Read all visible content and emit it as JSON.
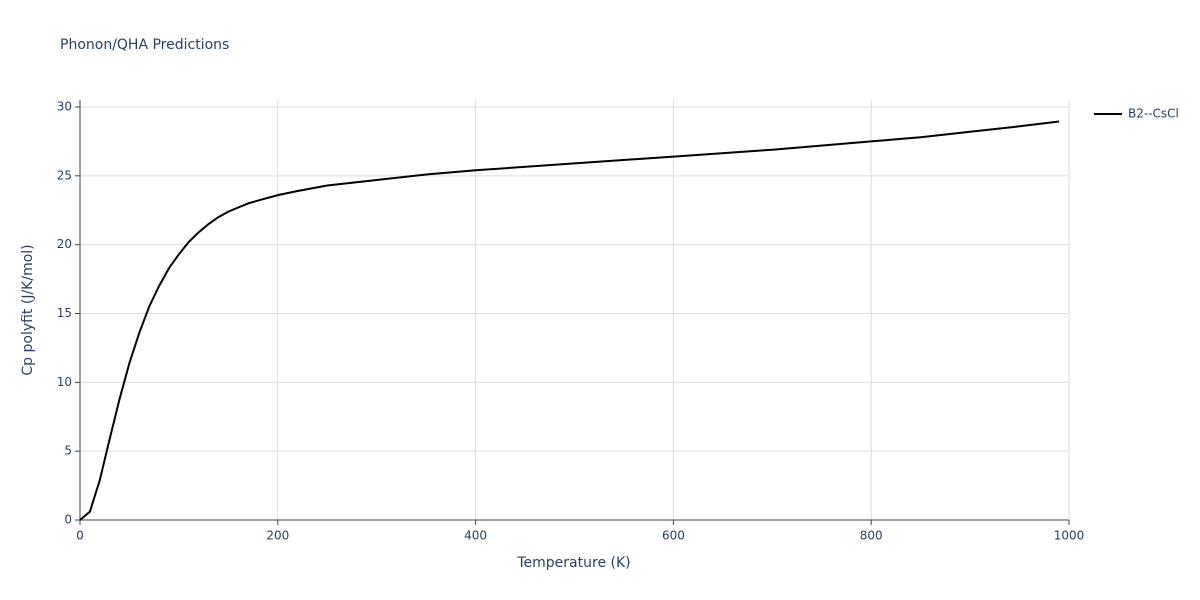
{
  "chart_data": {
    "type": "line",
    "title": "Phonon/QHA Predictions",
    "x_label": "Temperature (K)",
    "y_label": "Cp polyfit (J/K/mol)",
    "x": [
      0,
      10,
      20,
      30,
      40,
      50,
      60,
      70,
      80,
      90,
      100,
      110,
      120,
      130,
      140,
      150,
      160,
      170,
      180,
      200,
      220,
      250,
      300,
      350,
      400,
      500,
      600,
      700,
      800,
      850,
      900,
      950,
      990
    ],
    "series": [
      {
        "name": "B2--CsCl",
        "color": "#000000",
        "values": [
          0,
          0.6,
          2.9,
          5.9,
          8.8,
          11.4,
          13.6,
          15.5,
          17.0,
          18.3,
          19.3,
          20.2,
          20.9,
          21.5,
          22.0,
          22.4,
          22.7,
          23.0,
          23.2,
          23.6,
          23.9,
          24.3,
          24.7,
          25.1,
          25.4,
          25.9,
          26.4,
          26.9,
          27.5,
          27.8,
          28.2,
          28.6,
          28.95
        ]
      }
    ],
    "xlim": [
      0,
      1000
    ],
    "xticks": [
      0,
      200,
      400,
      600,
      800,
      1000
    ],
    "ylim": [
      0,
      30
    ],
    "yticks": [
      0,
      5,
      10,
      15,
      20,
      25,
      30
    ],
    "grid": true,
    "legend": "right"
  }
}
